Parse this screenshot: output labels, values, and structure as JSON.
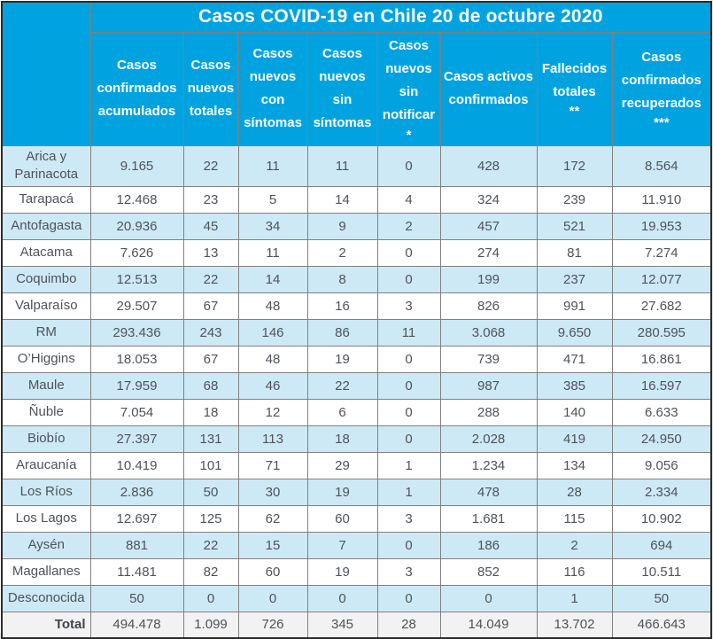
{
  "colors": {
    "header_bg": "#00a3e0",
    "header_text": "#ffffff",
    "row_alt_bg": "#cee9f6",
    "row_bg": "#ffffff",
    "total_row_bg": "#f2f2f2",
    "inner_border": "#808080",
    "outer_border": "#2b2b2b",
    "data_text": "#4d5359"
  },
  "chart_data": {
    "type": "table",
    "title": "Casos COVID-19 en Chile 20 de octubre 2020",
    "corner_label": "",
    "columns": [
      {
        "label": "Casos confirmados acumulados",
        "note": ""
      },
      {
        "label": "Casos nuevos totales",
        "note": ""
      },
      {
        "label": "Casos nuevos con síntomas",
        "note": ""
      },
      {
        "label": "Casos nuevos sin síntomas",
        "note": ""
      },
      {
        "label": "Casos nuevos sin notificar",
        "note": "*"
      },
      {
        "label": "Casos activos confirmados",
        "note": ""
      },
      {
        "label": "Fallecidos totales",
        "note": "**"
      },
      {
        "label": "Casos confirmados recuperados",
        "note": "***"
      }
    ],
    "rows": [
      {
        "region": "Arica y Parinacota",
        "values": [
          "9.165",
          "22",
          "11",
          "11",
          "0",
          "428",
          "172",
          "8.564"
        ]
      },
      {
        "region": "Tarapacá",
        "values": [
          "12.468",
          "23",
          "5",
          "14",
          "4",
          "324",
          "239",
          "11.910"
        ]
      },
      {
        "region": "Antofagasta",
        "values": [
          "20.936",
          "45",
          "34",
          "9",
          "2",
          "457",
          "521",
          "19.953"
        ]
      },
      {
        "region": "Atacama",
        "values": [
          "7.626",
          "13",
          "11",
          "2",
          "0",
          "274",
          "81",
          "7.274"
        ]
      },
      {
        "region": "Coquimbo",
        "values": [
          "12.513",
          "22",
          "14",
          "8",
          "0",
          "199",
          "237",
          "12.077"
        ]
      },
      {
        "region": "Valparaíso",
        "values": [
          "29.507",
          "67",
          "48",
          "16",
          "3",
          "826",
          "991",
          "27.682"
        ]
      },
      {
        "region": "RM",
        "values": [
          "293.436",
          "243",
          "146",
          "86",
          "11",
          "3.068",
          "9.650",
          "280.595"
        ]
      },
      {
        "region": "O’Higgins",
        "values": [
          "18.053",
          "67",
          "48",
          "19",
          "0",
          "739",
          "471",
          "16.861"
        ]
      },
      {
        "region": "Maule",
        "values": [
          "17.959",
          "68",
          "46",
          "22",
          "0",
          "987",
          "385",
          "16.597"
        ]
      },
      {
        "region": "Ñuble",
        "values": [
          "7.054",
          "18",
          "12",
          "6",
          "0",
          "288",
          "140",
          "6.633"
        ]
      },
      {
        "region": "Biobío",
        "values": [
          "27.397",
          "131",
          "113",
          "18",
          "0",
          "2.028",
          "419",
          "24.950"
        ]
      },
      {
        "region": "Araucanía",
        "values": [
          "10.419",
          "101",
          "71",
          "29",
          "1",
          "1.234",
          "134",
          "9.056"
        ]
      },
      {
        "region": "Los Ríos",
        "values": [
          "2.836",
          "50",
          "30",
          "19",
          "1",
          "478",
          "28",
          "2.334"
        ]
      },
      {
        "region": "Los Lagos",
        "values": [
          "12.697",
          "125",
          "62",
          "60",
          "3",
          "1.681",
          "115",
          "10.902"
        ]
      },
      {
        "region": "Aysén",
        "values": [
          "881",
          "22",
          "15",
          "7",
          "0",
          "186",
          "2",
          "694"
        ]
      },
      {
        "region": "Magallanes",
        "values": [
          "11.481",
          "82",
          "60",
          "19",
          "3",
          "852",
          "116",
          "10.511"
        ]
      },
      {
        "region": "Desconocida",
        "values": [
          "50",
          "0",
          "0",
          "0",
          "0",
          "0",
          "1",
          "50"
        ]
      }
    ],
    "total": {
      "label": "Total",
      "values": [
        "494.478",
        "1.099",
        "726",
        "345",
        "28",
        "14.049",
        "13.702",
        "466.643"
      ]
    }
  }
}
